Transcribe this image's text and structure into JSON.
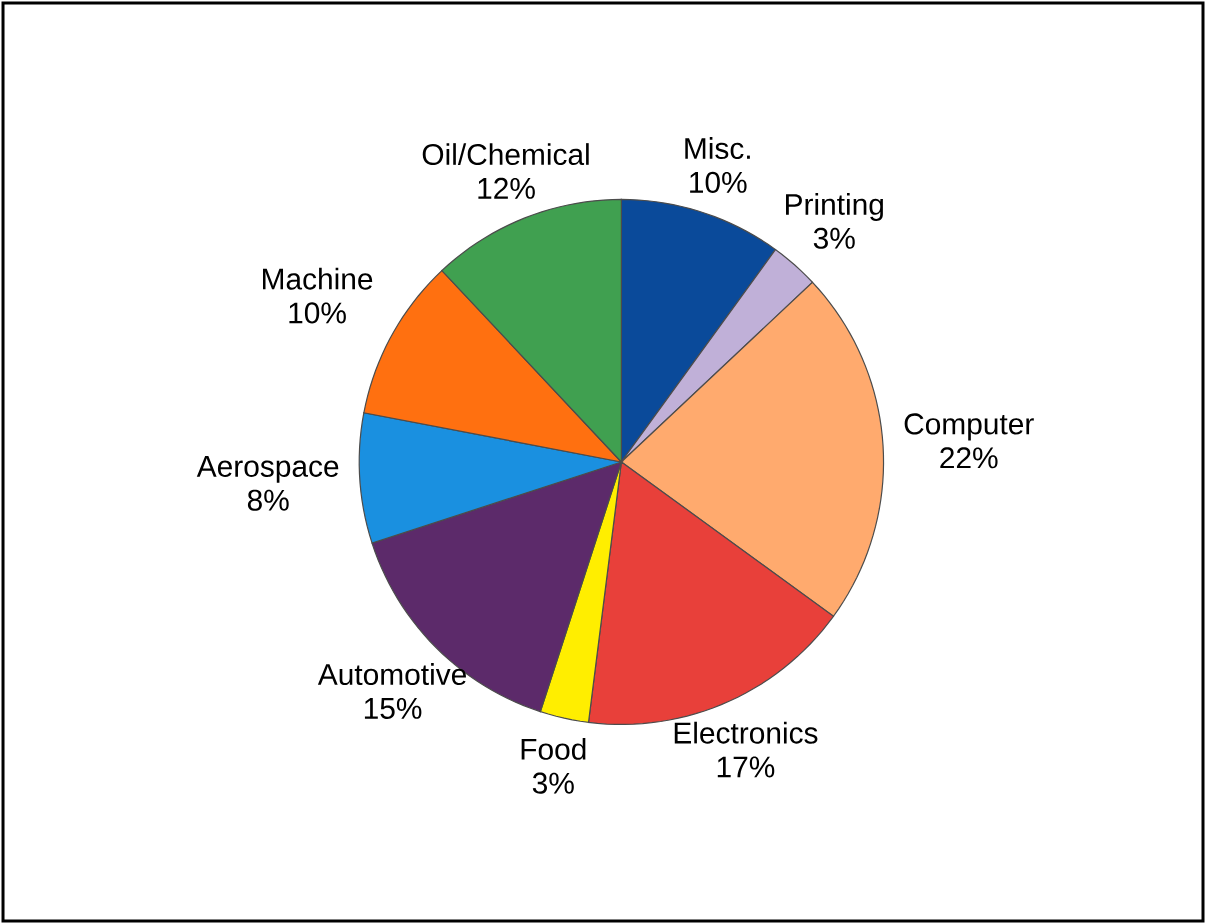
{
  "chart_data": {
    "type": "pie",
    "categories": [
      "Misc.",
      "Printing",
      "Computer",
      "Electronics",
      "Food",
      "Automotive",
      "Aerospace",
      "Machine",
      "Oil/Chemical"
    ],
    "values": [
      10,
      3,
      22,
      17,
      3,
      15,
      8,
      10,
      12
    ],
    "colors": [
      "#0a4a9a",
      "#c0b0d8",
      "#ffaa6e",
      "#e8403a",
      "#ffee00",
      "#5c2a6a",
      "#1a90e0",
      "#ff7010",
      "#40a050"
    ],
    "value_labels": [
      "10%",
      "3%",
      "22%",
      "17%",
      "3%",
      "15%",
      "8%",
      "10%",
      "12%"
    ]
  }
}
